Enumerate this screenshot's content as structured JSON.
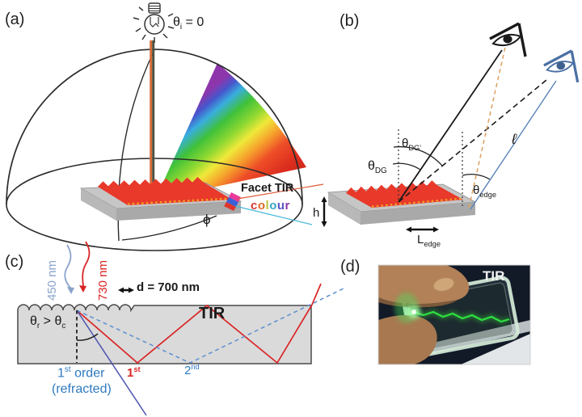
{
  "figure": {
    "panel_a": {
      "tag": "(a)",
      "incidence": {
        "sym": "θ",
        "sub": "i",
        "rest": " = 0"
      },
      "facet_tir": "Facet TIR",
      "colour_word": [
        {
          "ch": "c",
          "color": "#d93a30"
        },
        {
          "ch": "o",
          "color": "#e06a28"
        },
        {
          "ch": "l",
          "color": "#bcc43a"
        },
        {
          "ch": "o",
          "color": "#38a8c4"
        },
        {
          "ch": "u",
          "color": "#5a55c8"
        },
        {
          "ch": "r",
          "color": "#9038a8"
        }
      ],
      "phi": "ϕ"
    },
    "panel_b": {
      "tag": "(b)",
      "theta_dg_prime": {
        "sym": "θ",
        "sub": "DG'"
      },
      "theta_dg": {
        "sym": "θ",
        "sub": "DG"
      },
      "theta_edge": {
        "sym": "θ",
        "sub": "edge"
      },
      "path_length": "ℓ",
      "thickness": "h",
      "l_edge": {
        "sym": "L",
        "sub": "edge"
      }
    },
    "panel_c": {
      "tag": "(c)",
      "wavelength_blue": "450 nm",
      "wavelength_red": "730 nm",
      "grating_period": "d = 700 nm",
      "tir": "TIR",
      "angle_condition": {
        "sym1": "θ",
        "sub1": "r",
        "op": " > ",
        "sym2": "θ",
        "sub2": "c"
      },
      "first_order": {
        "num": "1",
        "sup": "st",
        "rest": " order"
      },
      "first_order_note": "(refracted)",
      "first_order_red": {
        "num": "1",
        "sup": "st"
      },
      "second_order": {
        "num": "2",
        "sup": "nd"
      }
    },
    "panel_d": {
      "tag": "(d)",
      "tir": "TIR"
    }
  }
}
